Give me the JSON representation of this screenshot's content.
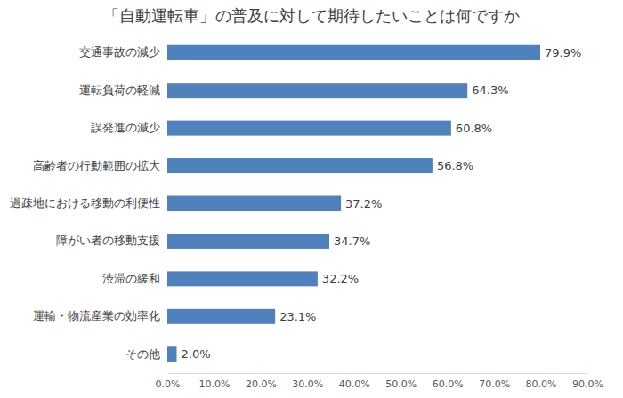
{
  "chart_data": {
    "type": "bar",
    "orientation": "horizontal",
    "title": "「自動運転車」の普及に対して期待したいことは何ですか",
    "categories": [
      "交通事故の減少",
      "運転負荷の軽減",
      "誤発進の減少",
      "高齢者の行動範囲の拡大",
      "過疎地における移動の利便性",
      "障がい者の移動支援",
      "渋滞の緩和",
      "運輸・物流産業の効率化",
      "その他"
    ],
    "values": [
      79.9,
      64.3,
      60.8,
      56.8,
      37.2,
      34.7,
      32.2,
      23.1,
      2.0
    ],
    "value_labels": [
      "79.9%",
      "64.3%",
      "60.8%",
      "56.8%",
      "37.2%",
      "34.7%",
      "32.2%",
      "23.1%",
      "2.0%"
    ],
    "data_labels": true,
    "color": "#4f81bd",
    "xlim": [
      0,
      90
    ],
    "xticks": [
      {
        "value": 0,
        "label": "0.0%"
      },
      {
        "value": 10,
        "label": "10.0%"
      },
      {
        "value": 20,
        "label": "20.0%"
      },
      {
        "value": 30,
        "label": "30.0%"
      },
      {
        "value": 40,
        "label": "40.0%"
      },
      {
        "value": 50,
        "label": "50.0%"
      },
      {
        "value": 60,
        "label": "60.0%"
      },
      {
        "value": 70,
        "label": "70.0%"
      },
      {
        "value": 80,
        "label": "80.0%"
      },
      {
        "value": 90,
        "label": "90.0%"
      }
    ],
    "grid": false
  }
}
